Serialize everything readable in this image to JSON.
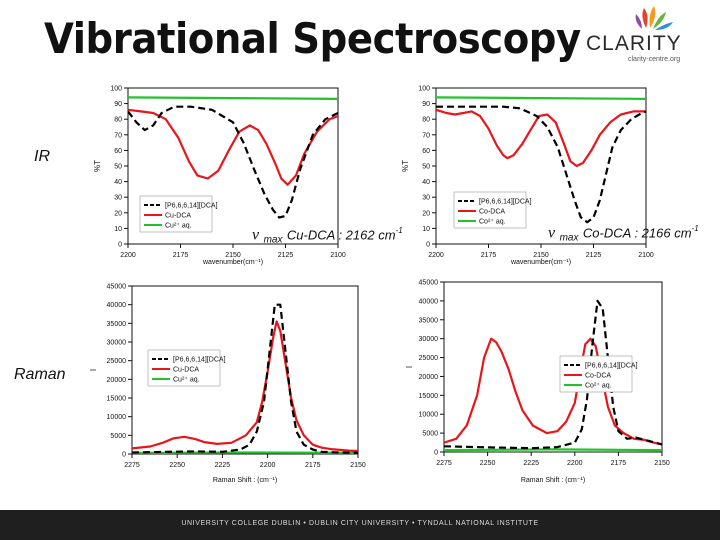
{
  "title": "Vibrational Spectroscopy",
  "logo": {
    "word": "CLARITY",
    "tagline": "clarity-centre.org",
    "colors": [
      "#e2432a",
      "#f29c1f",
      "#6cb33f",
      "#2a8fd6",
      "#8a4fa3"
    ]
  },
  "labels": {
    "ir": "IR",
    "raman": "Raman"
  },
  "annotations": [
    {
      "nu": "v",
      "sub": "max",
      "text": "Cu-DCA : 2162 cm",
      "sup": "-1"
    },
    {
      "nu": "v",
      "sub": "max",
      "text": "Co-DCA : 2166 cm",
      "sup": "-1"
    }
  ],
  "footer": "UNIVERSITY COLLEGE DUBLIN  •  DUBLIN CITY UNIVERSITY  •  TYNDALL NATIONAL INSTITUTE",
  "colors": {
    "ionic_liquid": "#000000",
    "complex": "#e8161b",
    "aqueous": "#22c22a"
  },
  "chart_data": [
    {
      "type": "line",
      "xlabel": "wavenumber(cm⁻¹)",
      "ylabel": "%T",
      "xlim": [
        2200,
        2100
      ],
      "ylim": [
        0,
        100
      ],
      "x_ticks": [
        "2200",
        "2175",
        "2150",
        "2125",
        "2100"
      ],
      "y_ticks": [
        "0",
        "10",
        "20",
        "30",
        "40",
        "50",
        "60",
        "70",
        "80",
        "90",
        "100"
      ],
      "legend": "bottom-left",
      "series": [
        {
          "name": "[P6,6,6,14][DCA]",
          "style": "dash",
          "x": [
            2200,
            2196,
            2192,
            2188,
            2184,
            2178,
            2170,
            2160,
            2150,
            2145,
            2140,
            2135,
            2131,
            2128,
            2125,
            2122,
            2118,
            2112,
            2106,
            2100
          ],
          "y": [
            85,
            78,
            73,
            76,
            84,
            88,
            88,
            86,
            78,
            65,
            48,
            32,
            22,
            17,
            18,
            28,
            48,
            70,
            80,
            84
          ]
        },
        {
          "name": "Cu-DCA",
          "style": "solid",
          "x": [
            2200,
            2194,
            2188,
            2182,
            2176,
            2171,
            2167,
            2162,
            2157,
            2152,
            2147,
            2142,
            2138,
            2134,
            2130,
            2127,
            2124,
            2120,
            2116,
            2110,
            2104,
            2100
          ],
          "y": [
            86,
            85,
            84,
            80,
            68,
            53,
            44,
            42,
            47,
            60,
            72,
            76,
            73,
            64,
            52,
            42,
            38,
            44,
            58,
            72,
            80,
            82
          ]
        },
        {
          "name": "Cu²⁺ aq.",
          "style": "solid",
          "x": [
            2200,
            2150,
            2100
          ],
          "y": [
            94,
            93.5,
            93
          ]
        }
      ]
    },
    {
      "type": "line",
      "xlabel": "wavenumber(cm⁻¹)",
      "ylabel": "%T",
      "xlim": [
        2200,
        2100
      ],
      "ylim": [
        0,
        100
      ],
      "x_ticks": [
        "2200",
        "2175",
        "2150",
        "2125",
        "2100"
      ],
      "y_ticks": [
        "0",
        "10",
        "20",
        "30",
        "40",
        "50",
        "60",
        "70",
        "80",
        "90",
        "100"
      ],
      "legend": "bottom-left",
      "series": [
        {
          "name": "[P6,6,6,14][DCA]",
          "style": "dash",
          "x": [
            2200,
            2192,
            2184,
            2176,
            2168,
            2160,
            2152,
            2147,
            2142,
            2138,
            2134,
            2131,
            2128,
            2125,
            2122,
            2119,
            2116,
            2112,
            2107,
            2102,
            2100
          ],
          "y": [
            88,
            88,
            88,
            88,
            88,
            87,
            82,
            75,
            62,
            45,
            28,
            17,
            14,
            17,
            28,
            45,
            62,
            73,
            80,
            84,
            85
          ]
        },
        {
          "name": "Co-DCA",
          "style": "solid",
          "x": [
            2200,
            2195,
            2191,
            2187,
            2183,
            2179,
            2175,
            2171,
            2168,
            2166,
            2163,
            2159,
            2155,
            2151,
            2147,
            2143,
            2139,
            2136,
            2133,
            2130,
            2126,
            2122,
            2117,
            2112,
            2106,
            2100
          ],
          "y": [
            86,
            84,
            83,
            84,
            85,
            82,
            74,
            63,
            57,
            55,
            57,
            64,
            73,
            82,
            83,
            78,
            64,
            53,
            50,
            52,
            60,
            70,
            78,
            83,
            85,
            85
          ]
        },
        {
          "name": "Co²⁺ aq.",
          "style": "solid",
          "x": [
            2200,
            2150,
            2100
          ],
          "y": [
            94,
            93.5,
            93
          ]
        }
      ]
    },
    {
      "type": "line",
      "xlabel": "Raman Shift : (cm⁻¹)",
      "ylabel": "I",
      "xlim": [
        2275,
        2150
      ],
      "ylim": [
        0,
        45000
      ],
      "x_ticks": [
        "2275",
        "2250",
        "2225",
        "2200",
        "2175",
        "2150"
      ],
      "y_ticks": [
        "0",
        "5000",
        "10000",
        "15000",
        "20000",
        "25000",
        "30000",
        "35000",
        "40000",
        "45000"
      ],
      "legend": "upper-left",
      "series": [
        {
          "name": "[P6,6,6,14][DCA]",
          "style": "dash",
          "x": [
            2275,
            2255,
            2240,
            2225,
            2215,
            2210,
            2206,
            2202,
            2199,
            2196,
            2193,
            2190,
            2187,
            2184,
            2180,
            2175,
            2170,
            2160,
            2150
          ],
          "y": [
            400,
            600,
            700,
            600,
            1200,
            2500,
            6000,
            14000,
            27000,
            40000,
            40000,
            27000,
            14000,
            6000,
            2500,
            1200,
            600,
            400,
            300
          ]
        },
        {
          "name": "Cu-DCA",
          "style": "solid",
          "x": [
            2275,
            2265,
            2258,
            2252,
            2246,
            2240,
            2235,
            2228,
            2220,
            2212,
            2206,
            2203,
            2200,
            2197,
            2195,
            2193,
            2190,
            2187,
            2184,
            2180,
            2175,
            2170,
            2165,
            2160,
            2155,
            2150
          ],
          "y": [
            1500,
            2000,
            3000,
            4200,
            4600,
            4000,
            3200,
            2700,
            3000,
            5000,
            8500,
            14000,
            22000,
            31000,
            35500,
            33000,
            24000,
            15000,
            9000,
            5000,
            2500,
            1700,
            1300,
            1100,
            900,
            800
          ]
        },
        {
          "name": "Cu²⁺ aq.",
          "style": "solid",
          "x": [
            2275,
            2212,
            2150
          ],
          "y": [
            300,
            400,
            300
          ]
        }
      ]
    },
    {
      "type": "line",
      "xlabel": "Raman Shift : (cm⁻¹)",
      "ylabel": "I",
      "xlim": [
        2275,
        2150
      ],
      "ylim": [
        0,
        45000
      ],
      "x_ticks": [
        "2275",
        "2250",
        "2225",
        "2200",
        "2175",
        "2150"
      ],
      "y_ticks": [
        "0",
        "5000",
        "10000",
        "15000",
        "20000",
        "25000",
        "30000",
        "35000",
        "40000",
        "45000"
      ],
      "legend": "upper-right",
      "series": [
        {
          "name": "[P6,6,6,14][DCA]",
          "style": "dash",
          "x": [
            2275,
            2245,
            2225,
            2210,
            2200,
            2196,
            2193,
            2190,
            2187,
            2184,
            2181,
            2178,
            2175,
            2170,
            2165,
            2158,
            2150
          ],
          "y": [
            1500,
            1200,
            1000,
            1300,
            2500,
            6000,
            14000,
            28000,
            40000,
            38000,
            25000,
            12000,
            5500,
            3500,
            3800,
            3000,
            2000
          ]
        },
        {
          "name": "Co-DCA",
          "style": "solid",
          "x": [
            2275,
            2268,
            2262,
            2256,
            2252,
            2248,
            2245,
            2242,
            2238,
            2234,
            2230,
            2224,
            2216,
            2210,
            2205,
            2200,
            2197,
            2194,
            2191,
            2188,
            2185,
            2181,
            2177,
            2172,
            2166,
            2160,
            2155,
            2150
          ],
          "y": [
            2500,
            3500,
            7000,
            15000,
            25000,
            30000,
            29000,
            26500,
            22000,
            16000,
            11000,
            7000,
            5000,
            5500,
            8000,
            13000,
            21000,
            28500,
            30000,
            28000,
            21000,
            12000,
            7000,
            5000,
            3500,
            3200,
            2500,
            2000
          ]
        },
        {
          "name": "Co²⁺ aq.",
          "style": "solid",
          "x": [
            2275,
            2212,
            2150
          ],
          "y": [
            500,
            700,
            500
          ]
        }
      ]
    }
  ]
}
